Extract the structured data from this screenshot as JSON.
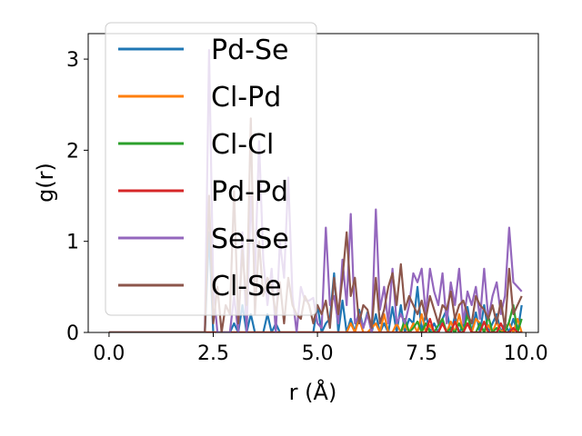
{
  "chart_data": {
    "type": "line",
    "title": "",
    "xlabel": "r (Å)",
    "ylabel": "g(r)",
    "xlim": [
      -0.5,
      10.3
    ],
    "ylim": [
      0,
      3.28
    ],
    "x_ticks": [
      0.0,
      2.5,
      5.0,
      7.5,
      10.0
    ],
    "x_tick_labels": [
      "0.0",
      "2.5",
      "5.0",
      "7.5",
      "10.0"
    ],
    "y_ticks": [
      0,
      1,
      2,
      3
    ],
    "y_tick_labels": [
      "0",
      "1",
      "2",
      "3"
    ],
    "grid": false,
    "legend_position": "upper-left",
    "x": [
      0.0,
      0.1,
      0.2,
      0.3,
      0.4,
      0.5,
      0.6,
      0.7,
      0.8,
      0.9,
      1.0,
      1.1,
      1.2,
      1.3,
      1.4,
      1.5,
      1.6,
      1.7,
      1.8,
      1.9,
      2.0,
      2.1,
      2.2,
      2.3,
      2.4,
      2.5,
      2.6,
      2.7,
      2.8,
      2.9,
      3.0,
      3.1,
      3.2,
      3.3,
      3.4,
      3.5,
      3.6,
      3.7,
      3.8,
      3.9,
      4.0,
      4.1,
      4.2,
      4.3,
      4.4,
      4.5,
      4.6,
      4.7,
      4.8,
      4.9,
      5.0,
      5.1,
      5.2,
      5.3,
      5.4,
      5.5,
      5.6,
      5.7,
      5.8,
      5.9,
      6.0,
      6.1,
      6.2,
      6.3,
      6.4,
      6.5,
      6.6,
      6.7,
      6.8,
      6.9,
      7.0,
      7.1,
      7.2,
      7.3,
      7.4,
      7.5,
      7.6,
      7.7,
      7.8,
      7.9,
      8.0,
      8.1,
      8.2,
      8.3,
      8.4,
      8.5,
      8.6,
      8.7,
      8.8,
      8.9,
      9.0,
      9.1,
      9.2,
      9.3,
      9.4,
      9.5,
      9.6,
      9.7,
      9.8,
      9.9
    ],
    "series": [
      {
        "name": "Pd-Se",
        "color": "#1f77b4",
        "values": [
          0,
          0,
          0,
          0,
          0,
          0,
          0,
          0,
          0,
          0,
          0,
          0,
          0,
          0,
          0,
          0,
          0,
          0,
          0,
          0,
          0,
          0,
          0,
          0,
          1.1,
          0,
          0,
          0,
          0,
          0,
          0.1,
          0,
          0.3,
          0,
          0.2,
          0,
          0,
          0,
          0.2,
          0,
          0.1,
          0,
          0,
          0,
          0,
          0,
          0,
          0,
          0,
          0,
          0.3,
          0,
          0.1,
          0.15,
          0.65,
          0,
          0.35,
          0,
          0.15,
          0,
          0.25,
          0.05,
          0.22,
          0,
          0.2,
          0,
          0.1,
          0,
          0.28,
          0,
          0.3,
          0,
          0.15,
          0.1,
          0.5,
          0,
          0.2,
          0,
          0.1,
          0,
          0.15,
          0.25,
          0,
          0.18,
          0,
          0.08,
          0.28,
          0,
          0.22,
          0,
          0.3,
          0,
          0.1,
          0.2,
          0,
          0.1,
          0,
          0.15,
          0,
          0.3
        ]
      },
      {
        "name": "Cl-Pd",
        "color": "#ff7f0e",
        "values": [
          0,
          0,
          0,
          0,
          0,
          0,
          0,
          0,
          0,
          0,
          0,
          0,
          0,
          0,
          0,
          0,
          0,
          0,
          0,
          0,
          0,
          0,
          0,
          0,
          0,
          0,
          0,
          0,
          0,
          0,
          0,
          0,
          0,
          0,
          0,
          0,
          0,
          0,
          0,
          0,
          0,
          0,
          0,
          0,
          0,
          0,
          0,
          0,
          0,
          0,
          0,
          0,
          0,
          0,
          0,
          0,
          0,
          0,
          0.1,
          0,
          0.15,
          0,
          0,
          0.05,
          0.1,
          0,
          0.2,
          0,
          0,
          0.1,
          0,
          0.08,
          0,
          0.1,
          0,
          0.2,
          0,
          0.08,
          0,
          0,
          0.1,
          0,
          0.12,
          0,
          0.2,
          0,
          0.1,
          0,
          0.15,
          0.1,
          0,
          0.08,
          0,
          0.12,
          0,
          0.05,
          0.1,
          0,
          0.15,
          0
        ]
      },
      {
        "name": "Cl-Cl",
        "color": "#2ca02c",
        "values": [
          0,
          0,
          0,
          0,
          0,
          0,
          0,
          0,
          0,
          0,
          0,
          0,
          0,
          0,
          0,
          0,
          0,
          0,
          0,
          0,
          0,
          0,
          0,
          0,
          0,
          0,
          0,
          0,
          0,
          0,
          0,
          0,
          0,
          0,
          0,
          0,
          0,
          0,
          0,
          0,
          0,
          0,
          0,
          0,
          0,
          0,
          0,
          0,
          0,
          0,
          0,
          0,
          0,
          0,
          0,
          0,
          0,
          0,
          0,
          0,
          0,
          0,
          0,
          0,
          0,
          0,
          0,
          0,
          0,
          0,
          0,
          0.15,
          0,
          0.05,
          0.12,
          0,
          0.1,
          0,
          0,
          0.08,
          0.15,
          0,
          0.05,
          0,
          0.1,
          0,
          0.2,
          0,
          0,
          0.1,
          0,
          0.18,
          0,
          0.05,
          0,
          0,
          0.12,
          0.3,
          0,
          0.15
        ]
      },
      {
        "name": "Pd-Pd",
        "color": "#d62728",
        "values": [
          0,
          0,
          0,
          0,
          0,
          0,
          0,
          0,
          0,
          0,
          0,
          0,
          0,
          0,
          0,
          0,
          0,
          0,
          0,
          0,
          0,
          0,
          0,
          0,
          0,
          0,
          0,
          0,
          0,
          0,
          0,
          0,
          0,
          0,
          0,
          0,
          0,
          0,
          0,
          0,
          0,
          0,
          0,
          0,
          0,
          0,
          0,
          0,
          0,
          0,
          0,
          0,
          0,
          0,
          0,
          0,
          0,
          0,
          0,
          0,
          0,
          0,
          0,
          0,
          0,
          0,
          0,
          0,
          0,
          0,
          0,
          0,
          0,
          0,
          0,
          0,
          0,
          0.15,
          0,
          0,
          0.1,
          0,
          0,
          0.12,
          0,
          0,
          0.1,
          0,
          0,
          0,
          0.12,
          0,
          0,
          0,
          0.1,
          0,
          0,
          0.05,
          0,
          0
        ]
      },
      {
        "name": "Se-Se",
        "color": "#9467bd",
        "values": [
          0,
          0,
          0,
          0,
          0,
          0,
          0,
          0,
          0,
          0,
          0,
          0,
          0,
          0,
          0,
          0,
          0,
          0,
          0,
          0,
          0,
          0,
          0,
          0,
          3.1,
          0.5,
          0,
          0,
          0,
          0,
          0.4,
          0,
          1.1,
          0,
          1.5,
          0.6,
          2.1,
          0.8,
          0.3,
          0.7,
          0,
          1.0,
          0.6,
          1.7,
          0.4,
          0,
          0.5,
          0.35,
          0.35,
          0.38,
          0.1,
          0.05,
          1.15,
          0.3,
          0.4,
          0.1,
          0.8,
          0.3,
          1.3,
          0.1,
          0.2,
          0.05,
          0.2,
          0,
          1.35,
          0.25,
          0.5,
          0.1,
          0.7,
          0.1,
          0.2,
          0.1,
          0.3,
          0.65,
          0.55,
          0.7,
          0.2,
          0.7,
          0.45,
          0.3,
          0.65,
          0.1,
          0.55,
          0.3,
          0.7,
          0.1,
          0.45,
          0.3,
          0.5,
          0.15,
          0.7,
          0.15,
          0.4,
          0.55,
          0.2,
          0.4,
          1.15,
          0.55,
          0.5,
          0.45
        ]
      },
      {
        "name": "Cl-Se",
        "color": "#8c564b",
        "values": [
          0,
          0,
          0,
          0,
          0,
          0,
          0,
          0,
          0,
          0,
          0,
          0,
          0,
          0,
          0,
          0,
          0,
          0,
          0,
          0,
          0,
          0,
          0,
          0,
          1.5,
          0.1,
          0.5,
          0,
          0.3,
          0.2,
          1.55,
          0.1,
          0.9,
          0.3,
          2.35,
          0.2,
          1.0,
          0.4,
          0.6,
          0.5,
          0.2,
          0.55,
          0.1,
          0.6,
          0.3,
          0.2,
          0.15,
          0.4,
          0.3,
          0.1,
          0.3,
          0.2,
          0.35,
          0.05,
          0.6,
          0.2,
          0.6,
          1.1,
          0.4,
          0.6,
          0.1,
          0.3,
          0.25,
          0.05,
          0.6,
          0.1,
          0.25,
          0.5,
          0.65,
          0.3,
          0.75,
          0.25,
          0.4,
          0.3,
          0.2,
          0.35,
          0.15,
          0.4,
          0.25,
          0.1,
          0.3,
          0.25,
          0.45,
          0.15,
          0.3,
          0.35,
          0.2,
          0.1,
          0.4,
          0.3,
          0.25,
          0.15,
          0.3,
          0.1,
          0.35,
          0.05,
          0.7,
          0.2,
          0.3,
          0.4
        ]
      }
    ]
  }
}
